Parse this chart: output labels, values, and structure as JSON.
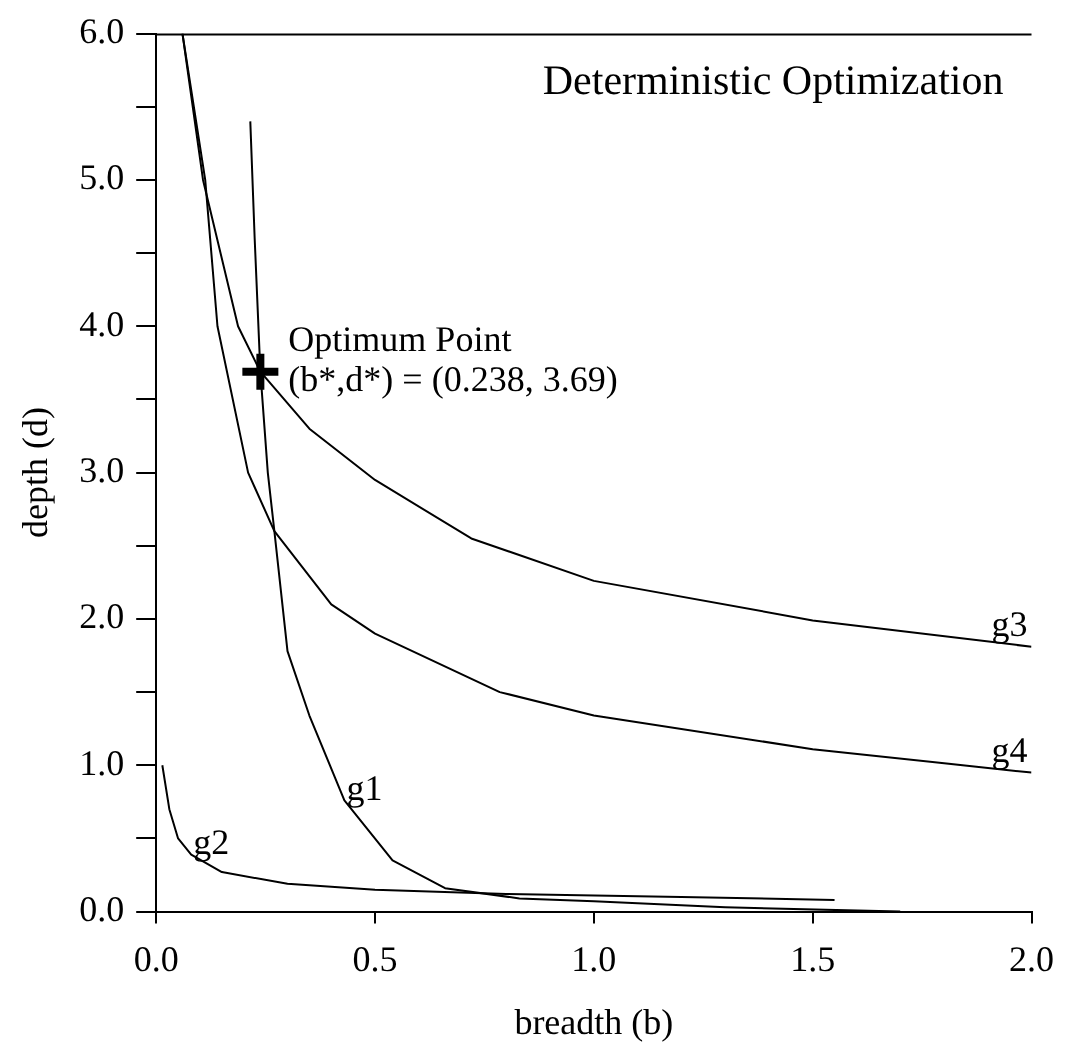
{
  "chart_data": {
    "type": "line",
    "title": "Deterministic Optimization",
    "xlabel": "breadth (b)",
    "ylabel": "depth (d)",
    "xlim": [
      0,
      2.0
    ],
    "xticks": [
      {
        "value": 0,
        "label": "0.0"
      },
      0.5,
      {
        "value": 1,
        "label": "1.0"
      },
      1.5,
      {
        "value": 2,
        "label": "2.0"
      }
    ],
    "ylim": [
      0,
      6.0
    ],
    "yticks": [
      {
        "value": 0,
        "label": "0.0"
      },
      {
        "value": 0.5,
        "label": null
      },
      {
        "value": 1,
        "label": "1.0"
      },
      {
        "value": 1.5,
        "label": null
      },
      {
        "value": 2,
        "label": "2.0"
      },
      {
        "value": 2.5,
        "label": null
      },
      {
        "value": 3,
        "label": "3.0"
      },
      {
        "value": 3.5,
        "label": null
      },
      {
        "value": 4,
        "label": "4.0"
      },
      {
        "value": 4.5,
        "label": null
      },
      {
        "value": 5,
        "label": "5.0"
      },
      {
        "value": 5.5,
        "label": null
      },
      {
        "value": 6,
        "label": "6.0"
      }
    ],
    "grid": false,
    "legend": false,
    "marker": "none",
    "line_style": "solid",
    "series": [
      {
        "name": "g1",
        "color": "#000000",
        "x": [
          0.215,
          0.225,
          0.238,
          0.255,
          0.27,
          0.3,
          0.35,
          0.43,
          0.54,
          0.66,
          0.83,
          1.0,
          1.3,
          1.7
        ],
        "values": [
          5.4,
          4.6,
          3.69,
          3.0,
          2.6,
          1.78,
          1.34,
          0.76,
          0.35,
          0.16,
          0.09,
          0.07,
          0.03,
          0.0
        ]
      },
      {
        "name": "g2",
        "color": "#000000",
        "x": [
          0.014,
          0.03,
          0.05,
          0.08,
          0.15,
          0.3,
          0.5,
          0.8,
          1.2,
          1.55
        ],
        "values": [
          1.0,
          0.7,
          0.5,
          0.39,
          0.27,
          0.19,
          0.15,
          0.12,
          0.1,
          0.08
        ]
      },
      {
        "name": "g3",
        "color": "#000000",
        "x": [
          0.06,
          0.107,
          0.187,
          0.238,
          0.35,
          0.5,
          0.72,
          1.0,
          1.5,
          2.0
        ],
        "values": [
          6.0,
          5.0,
          4.0,
          3.69,
          3.3,
          2.95,
          2.55,
          2.26,
          1.99,
          1.81
        ]
      },
      {
        "name": "g4",
        "color": "#000000",
        "x": [
          0.06,
          0.112,
          0.14,
          0.21,
          0.27,
          0.4,
          0.5,
          0.785,
          1.0,
          1.5,
          2.0
        ],
        "values": [
          6.0,
          5.0,
          4.0,
          3.0,
          2.6,
          2.1,
          1.9,
          1.5,
          1.34,
          1.11,
          0.95
        ]
      },
      {
        "type": "scatter",
        "marker": "cross",
        "color": "#000000",
        "x": [
          0.238
        ],
        "values": [
          3.69
        ]
      }
    ],
    "annotations": [
      {
        "text": "Optimum Point\n(b*,d*) = (0.238, 3.69)",
        "x": 0.238,
        "y": 3.69
      }
    ]
  }
}
